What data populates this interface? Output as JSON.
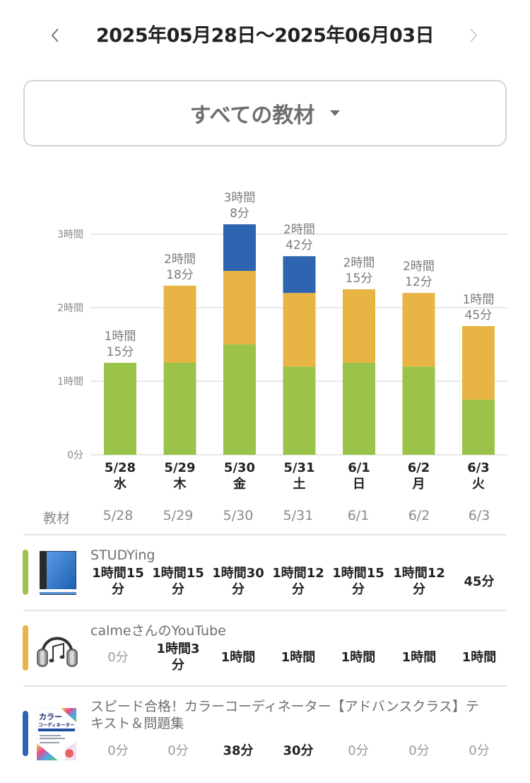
{
  "header": {
    "title": "2025年05月28日～2025年06月03日",
    "prev_icon": "chevron-left-icon",
    "next_icon": "chevron-right-icon"
  },
  "selector": {
    "label": "すべての教材",
    "icon": "caret-down-icon"
  },
  "colors": {
    "studying": "#9bc34a",
    "calme": "#e8b444",
    "speed": "#2e65b0",
    "grid": "#e0e0e0",
    "axis_text": "#8a8a8a",
    "total_label": "#7a7a7a"
  },
  "chart_data": {
    "type": "bar",
    "stacked": true,
    "unit": "minutes",
    "categories": [
      "5/28",
      "5/29",
      "5/30",
      "5/31",
      "6/1",
      "6/2",
      "6/3"
    ],
    "weekdays": [
      "水",
      "木",
      "金",
      "土",
      "日",
      "月",
      "火"
    ],
    "series": [
      {
        "name": "STUDYing",
        "color": "#9bc34a",
        "values": [
          75,
          75,
          90,
          72,
          75,
          72,
          45
        ]
      },
      {
        "name": "calmeさんのYouTube",
        "color": "#e8b444",
        "values": [
          0,
          63,
          60,
          60,
          60,
          60,
          60
        ]
      },
      {
        "name": "スピード合格！カラーコーディネーター【アドバンスクラス】テキスト＆問題集",
        "color": "#2e65b0",
        "values": [
          0,
          0,
          38,
          30,
          0,
          0,
          0
        ]
      }
    ],
    "totals": [
      75,
      138,
      188,
      162,
      135,
      132,
      105
    ],
    "total_labels": [
      [
        "1時間",
        "15分"
      ],
      [
        "2時間",
        "18分"
      ],
      [
        "3時間",
        "8分"
      ],
      [
        "2時間",
        "42分"
      ],
      [
        "2時間",
        "15分"
      ],
      [
        "2時間",
        "12分"
      ],
      [
        "1時間",
        "45分"
      ]
    ],
    "yticks": [
      {
        "value": 0,
        "label": "0分"
      },
      {
        "value": 60,
        "label": "1時間"
      },
      {
        "value": 120,
        "label": "2時間"
      },
      {
        "value": 180,
        "label": "3時間"
      }
    ],
    "ylim": [
      0,
      180
    ],
    "grid": true,
    "title": "",
    "xlabel": "",
    "ylabel": ""
  },
  "table": {
    "header_label": "教材",
    "dates": [
      "5/28",
      "5/29",
      "5/30",
      "5/31",
      "6/1",
      "6/2",
      "6/3"
    ],
    "rows": [
      {
        "name": "STUDYing",
        "icon": "book-icon",
        "color": "#9bc34a",
        "cells": [
          {
            "text": "1時間15分",
            "lines": [
              "1時間15",
              "分"
            ],
            "zero": false
          },
          {
            "text": "1時間15分",
            "lines": [
              "1時間15",
              "分"
            ],
            "zero": false
          },
          {
            "text": "1時間30分",
            "lines": [
              "1時間30",
              "分"
            ],
            "zero": false
          },
          {
            "text": "1時間12分",
            "lines": [
              "1時間12",
              "分"
            ],
            "zero": false
          },
          {
            "text": "1時間15分",
            "lines": [
              "1時間15",
              "分"
            ],
            "zero": false
          },
          {
            "text": "1時間12分",
            "lines": [
              "1時間12",
              "分"
            ],
            "zero": false
          },
          {
            "text": "45分",
            "lines": [
              "45分"
            ],
            "zero": false
          }
        ]
      },
      {
        "name": "calmeさんのYouTube",
        "icon": "headphones-icon",
        "color": "#e8b444",
        "cells": [
          {
            "text": "0分",
            "lines": [
              "0分"
            ],
            "zero": true
          },
          {
            "text": "1時間3分",
            "lines": [
              "1時間3",
              "分"
            ],
            "zero": false
          },
          {
            "text": "1時間",
            "lines": [
              "1時間"
            ],
            "zero": false
          },
          {
            "text": "1時間",
            "lines": [
              "1時間"
            ],
            "zero": false
          },
          {
            "text": "1時間",
            "lines": [
              "1時間"
            ],
            "zero": false
          },
          {
            "text": "1時間",
            "lines": [
              "1時間"
            ],
            "zero": false
          },
          {
            "text": "1時間",
            "lines": [
              "1時間"
            ],
            "zero": false
          }
        ]
      },
      {
        "name": "スピード合格！カラーコーディネーター【アドバンスクラス】テキスト＆問題集",
        "name_lines": [
          "スピード合格！カラーコーディネーター【アドバンスクラス】テ",
          "キスト＆問題集"
        ],
        "icon": "book-cover-icon",
        "cover_text": [
          "カラー",
          "コーディネーター"
        ],
        "color": "#2e65b0",
        "cells": [
          {
            "text": "0分",
            "lines": [
              "0分"
            ],
            "zero": true
          },
          {
            "text": "0分",
            "lines": [
              "0分"
            ],
            "zero": true
          },
          {
            "text": "38分",
            "lines": [
              "38分"
            ],
            "zero": false
          },
          {
            "text": "30分",
            "lines": [
              "30分"
            ],
            "zero": false
          },
          {
            "text": "0分",
            "lines": [
              "0分"
            ],
            "zero": true
          },
          {
            "text": "0分",
            "lines": [
              "0分"
            ],
            "zero": true
          },
          {
            "text": "0分",
            "lines": [
              "0分"
            ],
            "zero": true
          }
        ]
      }
    ]
  }
}
